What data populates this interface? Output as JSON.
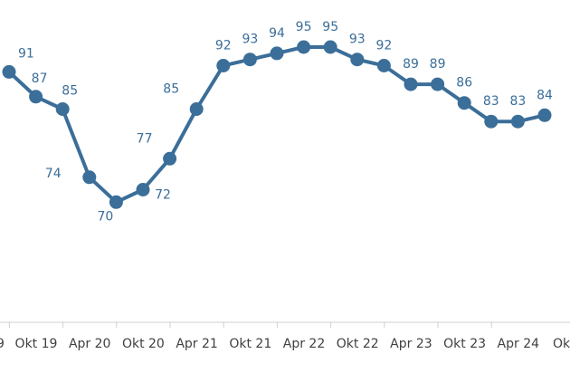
{
  "chart_data": {
    "type": "line",
    "title": "",
    "xlabel": "",
    "ylabel": "",
    "ylim": [
      55,
      100
    ],
    "grid": false,
    "legend": "none",
    "x_ticks": [
      "Okt 19",
      "Apr 20",
      "Okt 20",
      "Apr 21",
      "Okt 21",
      "Apr 22",
      "Okt 22",
      "Apr 23",
      "Okt 23",
      "Apr 24"
    ],
    "series": [
      {
        "color": "#3b6e99",
        "values": [
          91,
          87,
          85,
          74,
          70,
          72,
          77,
          85,
          92,
          93,
          94,
          95,
          95,
          93,
          92,
          89,
          89,
          86,
          83,
          83,
          84
        ]
      }
    ]
  }
}
